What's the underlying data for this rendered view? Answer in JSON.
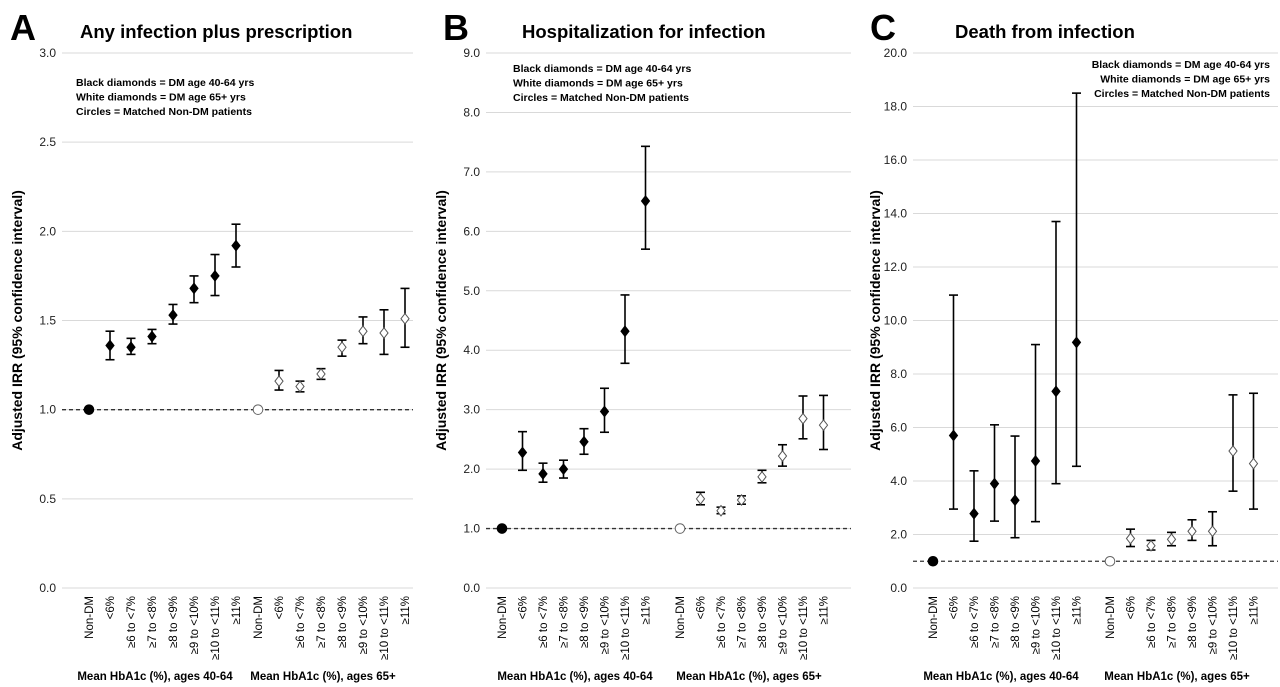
{
  "figure": {
    "group_labels": [
      "Mean HbA1c (%), ages 40-64",
      "Mean HbA1c (%), ages 65+"
    ],
    "marker_colors": {
      "young_dm": "#000000",
      "old_dm": "#ffffff",
      "non_dm": "#000000",
      "old_non_dm": "#ffffff"
    },
    "grid_color": "#d9d9d9"
  },
  "chart_data": [
    {
      "type": "scatter",
      "panel_letter": "A",
      "title": "Any infection plus prescription",
      "ylabel": "Adjusted IRR (95% confidence interval)",
      "ylim": [
        0,
        3.0
      ],
      "yticks": [
        "0.0",
        "0.5",
        "1.0",
        "1.5",
        "2.0",
        "2.5",
        "3.0"
      ],
      "grid": true,
      "reference_line": 1.0,
      "legend_position": "top-left",
      "legend": [
        "Black diamonds = DM age 40-64 yrs",
        "White diamonds = DM age 65+ yrs",
        "Circles = Matched Non-DM patients"
      ],
      "categories": [
        "Non-DM",
        "<6%",
        "≥6 to <7%",
        "≥7 to <8%",
        "≥8 to <9%",
        "≥9 to <10%",
        "≥10 to <11%",
        "≥11%",
        "Non-DM",
        "<6%",
        "≥6 to <7%",
        "≥7 to <8%",
        "≥8 to <9%",
        "≥9 to <10%",
        "≥10 to <11%",
        "≥11%"
      ],
      "series": [
        {
          "points": [
            {
              "category": "Non-DM",
              "value": 1.0,
              "low": null,
              "high": null
            },
            {
              "category": "<6%",
              "value": 1.36,
              "low": 1.28,
              "high": 1.44
            },
            {
              "category": "≥6 to <7%",
              "value": 1.35,
              "low": 1.31,
              "high": 1.4
            },
            {
              "category": "≥7 to <8%",
              "value": 1.41,
              "low": 1.37,
              "high": 1.45
            },
            {
              "category": "≥8 to <9%",
              "value": 1.53,
              "low": 1.48,
              "high": 1.59
            },
            {
              "category": "≥9 to <10%",
              "value": 1.68,
              "low": 1.6,
              "high": 1.75
            },
            {
              "category": "≥10 to <11%",
              "value": 1.75,
              "low": 1.64,
              "high": 1.87
            },
            {
              "category": "≥11%",
              "value": 1.92,
              "low": 1.8,
              "high": 2.04
            }
          ]
        },
        {
          "points": [
            {
              "category": "Non-DM",
              "value": 1.0,
              "low": null,
              "high": null
            },
            {
              "category": "<6%",
              "value": 1.16,
              "low": 1.11,
              "high": 1.22
            },
            {
              "category": "≥6 to <7%",
              "value": 1.13,
              "low": 1.1,
              "high": 1.16
            },
            {
              "category": "≥7 to <8%",
              "value": 1.2,
              "low": 1.17,
              "high": 1.23
            },
            {
              "category": "≥8 to <9%",
              "value": 1.35,
              "low": 1.3,
              "high": 1.39
            },
            {
              "category": "≥9 to <10%",
              "value": 1.44,
              "low": 1.37,
              "high": 1.52
            },
            {
              "category": "≥10 to <11%",
              "value": 1.43,
              "low": 1.31,
              "high": 1.56
            },
            {
              "category": "≥11%",
              "value": 1.51,
              "low": 1.35,
              "high": 1.68
            }
          ]
        }
      ]
    },
    {
      "type": "scatter",
      "panel_letter": "B",
      "title": "Hospitalization for infection",
      "ylabel": "Adjusted IRR (95% confidence interval)",
      "ylim": [
        0,
        9.0
      ],
      "yticks": [
        "0.0",
        "1.0",
        "2.0",
        "3.0",
        "4.0",
        "5.0",
        "6.0",
        "7.0",
        "8.0",
        "9.0"
      ],
      "grid": true,
      "reference_line": 1.0,
      "legend_position": "top-left",
      "legend": [
        "Black diamonds = DM age 40-64 yrs",
        "White diamonds = DM age 65+ yrs",
        "Circles = Matched Non-DM patients"
      ],
      "categories": [
        "Non-DM",
        "<6%",
        "≥6 to <7%",
        "≥7 to <8%",
        "≥8 to <9%",
        "≥9 to <10%",
        "≥10 to <11%",
        "≥11%",
        "Non-DM",
        "<6%",
        "≥6 to <7%",
        "≥7 to <8%",
        "≥8 to <9%",
        "≥9 to <10%",
        "≥10 to <11%",
        "≥11%"
      ],
      "series": [
        {
          "points": [
            {
              "category": "Non-DM",
              "value": 1.0,
              "low": null,
              "high": null
            },
            {
              "category": "<6%",
              "value": 2.28,
              "low": 1.98,
              "high": 2.63
            },
            {
              "category": "≥6 to <7%",
              "value": 1.92,
              "low": 1.78,
              "high": 2.1
            },
            {
              "category": "≥7 to <8%",
              "value": 2.0,
              "low": 1.85,
              "high": 2.15
            },
            {
              "category": "≥8 to <9%",
              "value": 2.46,
              "low": 2.25,
              "high": 2.68
            },
            {
              "category": "≥9 to <10%",
              "value": 2.97,
              "low": 2.62,
              "high": 3.36
            },
            {
              "category": "≥10 to <11%",
              "value": 4.32,
              "low": 3.78,
              "high": 4.93
            },
            {
              "category": "≥11%",
              "value": 6.51,
              "low": 5.7,
              "high": 7.43
            }
          ]
        },
        {
          "points": [
            {
              "category": "Non-DM",
              "value": 1.0,
              "low": null,
              "high": null
            },
            {
              "category": "<6%",
              "value": 1.5,
              "low": 1.4,
              "high": 1.61
            },
            {
              "category": "≥6 to <7%",
              "value": 1.3,
              "low": 1.25,
              "high": 1.36
            },
            {
              "category": "≥7 to <8%",
              "value": 1.48,
              "low": 1.41,
              "high": 1.55
            },
            {
              "category": "≥8 to <9%",
              "value": 1.87,
              "low": 1.77,
              "high": 1.98
            },
            {
              "category": "≥9 to <10%",
              "value": 2.22,
              "low": 2.05,
              "high": 2.41
            },
            {
              "category": "≥10 to <11%",
              "value": 2.85,
              "low": 2.51,
              "high": 3.23
            },
            {
              "category": "≥11%",
              "value": 2.74,
              "low": 2.33,
              "high": 3.24
            }
          ]
        }
      ]
    },
    {
      "type": "scatter",
      "panel_letter": "C",
      "title": "Death from infection",
      "ylabel": "Adjusted IRR (95% confidence interval)",
      "ylim": [
        0,
        20.0
      ],
      "yticks": [
        "0.0",
        "2.0",
        "4.0",
        "6.0",
        "8.0",
        "10.0",
        "12.0",
        "14.0",
        "16.0",
        "18.0",
        "20.0"
      ],
      "grid": true,
      "reference_line": 1.0,
      "legend_position": "top-right",
      "legend": [
        "Black diamonds = DM age 40-64 yrs",
        "White diamonds = DM age 65+ yrs",
        "Circles = Matched Non-DM patients"
      ],
      "categories": [
        "Non-DM",
        "<6%",
        "≥6 to <7%",
        "≥7 to <8%",
        "≥8 to <9%",
        "≥9 to <10%",
        "≥10 to <11%",
        "≥11%",
        "Non-DM",
        "<6%",
        "≥6 to <7%",
        "≥7 to <8%",
        "≥8 to <9%",
        "≥9 to <10%",
        "≥10 to <11%",
        "≥11%"
      ],
      "series": [
        {
          "points": [
            {
              "category": "Non-DM",
              "value": 1.0,
              "low": null,
              "high": null
            },
            {
              "category": "<6%",
              "value": 5.7,
              "low": 2.95,
              "high": 10.95
            },
            {
              "category": "≥6 to <7%",
              "value": 2.78,
              "low": 1.75,
              "high": 4.38
            },
            {
              "category": "≥7 to <8%",
              "value": 3.9,
              "low": 2.5,
              "high": 6.1
            },
            {
              "category": "≥8 to <9%",
              "value": 3.28,
              "low": 1.88,
              "high": 5.68
            },
            {
              "category": "≥9 to <10%",
              "value": 4.75,
              "low": 2.48,
              "high": 9.1
            },
            {
              "category": "≥10 to <11%",
              "value": 7.35,
              "low": 3.9,
              "high": 13.7
            },
            {
              "category": "≥11%",
              "value": 9.18,
              "low": 4.55,
              "high": 18.5
            }
          ]
        },
        {
          "points": [
            {
              "category": "Non-DM",
              "value": 1.0,
              "low": null,
              "high": null
            },
            {
              "category": "<6%",
              "value": 1.85,
              "low": 1.55,
              "high": 2.2
            },
            {
              "category": "≥6 to <7%",
              "value": 1.58,
              "low": 1.42,
              "high": 1.78
            },
            {
              "category": "≥7 to <8%",
              "value": 1.82,
              "low": 1.58,
              "high": 2.08
            },
            {
              "category": "≥8 to <9%",
              "value": 2.12,
              "low": 1.78,
              "high": 2.55
            },
            {
              "category": "≥9 to <10%",
              "value": 2.12,
              "low": 1.58,
              "high": 2.85
            },
            {
              "category": "≥10 to <11%",
              "value": 5.12,
              "low": 3.62,
              "high": 7.22
            },
            {
              "category": "≥11%",
              "value": 4.65,
              "low": 2.95,
              "high": 7.28
            }
          ]
        }
      ]
    }
  ]
}
